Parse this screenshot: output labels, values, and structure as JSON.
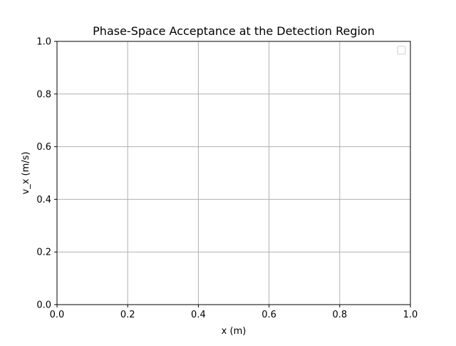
{
  "chart_data": {
    "type": "scatter",
    "title": "Phase-Space Acceptance at the Detection Region",
    "xlabel": "x (m)",
    "ylabel": "v_x (m/s)",
    "xlim": [
      0.0,
      1.0
    ],
    "ylim": [
      0.0,
      1.0
    ],
    "x_ticks": [
      0.0,
      0.2,
      0.4,
      0.6,
      0.8,
      1.0
    ],
    "y_ticks": [
      0.0,
      0.2,
      0.4,
      0.6,
      0.8,
      1.0
    ],
    "x_tick_labels": [
      "0.0",
      "0.2",
      "0.4",
      "0.6",
      "0.8",
      "1.0"
    ],
    "y_tick_labels": [
      "0.0",
      "0.2",
      "0.4",
      "0.6",
      "0.8",
      "1.0"
    ],
    "grid": true,
    "legend": {
      "placement": "top-right",
      "entries": []
    },
    "series": []
  }
}
